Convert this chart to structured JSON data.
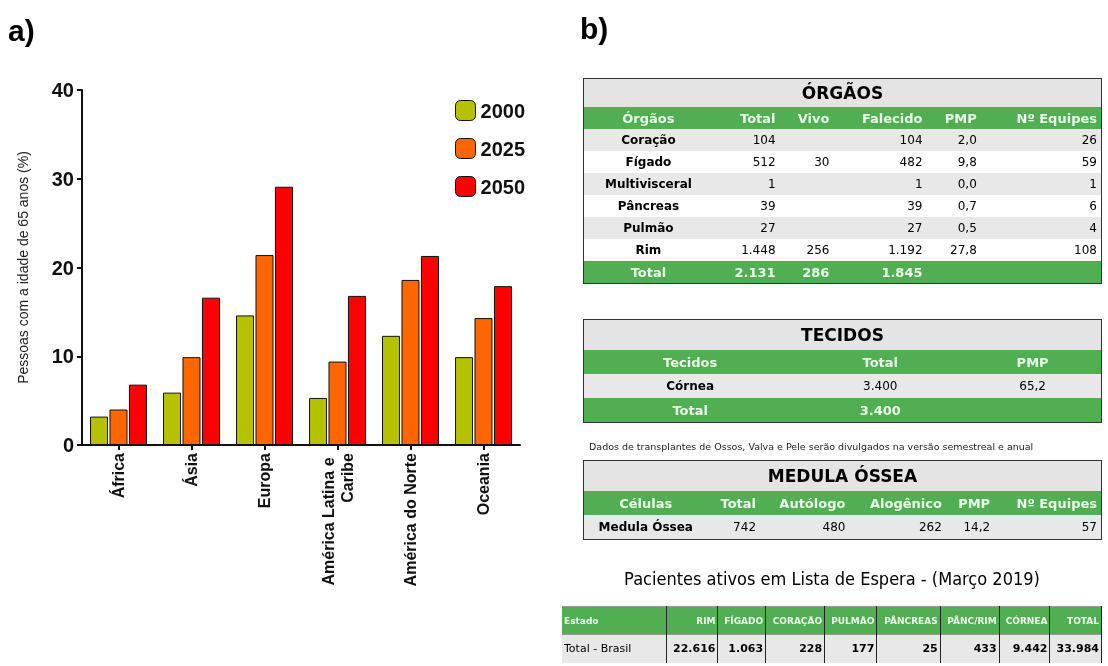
{
  "chart_data": [
    {
      "type": "bar",
      "annotations": [
        "a)"
      ],
      "ylabel": "Pessoas com a idade de 65 anos (%)",
      "categories": [
        "África",
        "Ásia",
        "Europa",
        "América Latina e Caribe",
        "América do Norte",
        "Oceania"
      ],
      "series": [
        {
          "name": "2000",
          "color": "#b5c200",
          "values": [
            3.2,
            5.9,
            14.6,
            5.3,
            12.3,
            9.9
          ]
        },
        {
          "name": "2025",
          "color": "#ff6600",
          "values": [
            4.0,
            9.9,
            21.4,
            9.4,
            18.6,
            14.3
          ]
        },
        {
          "name": "2050",
          "color": "#ff0000",
          "values": [
            6.8,
            16.6,
            29.1,
            16.8,
            21.3,
            17.9
          ]
        }
      ],
      "ylim": [
        0,
        40
      ],
      "yticks": [
        0,
        10,
        20,
        30,
        40
      ],
      "grid": false,
      "legend": "top right"
    },
    {
      "type": "other",
      "annotations": [
        "b)"
      ],
      "title": "ÓRGÃOS",
      "categories": [
        "Órgãos",
        "Total",
        "Vivo",
        "Falecido",
        "PMP",
        "Nº Equipes"
      ],
      "y_categories": [
        "Coração",
        "Fígado",
        "Multivisceral",
        "Pâncreas",
        "Pulmão",
        "Rim",
        "Total"
      ],
      "cell_labels": [
        [
          "104",
          null,
          "104",
          "2,0",
          "26"
        ],
        [
          "512",
          "30",
          "482",
          "9,8",
          "59"
        ],
        [
          "1",
          null,
          "1",
          "0,0",
          "1"
        ],
        [
          "39",
          null,
          "39",
          "0,7",
          "6"
        ],
        [
          "27",
          null,
          "27",
          "0,5",
          "4"
        ],
        [
          "1.448",
          "256",
          "1.192",
          "27,8",
          "108"
        ],
        [
          "2.131",
          "286",
          "1.845",
          null,
          null
        ]
      ]
    },
    {
      "type": "other",
      "title": "TECIDOS",
      "annotations": [
        "Dados de transplantes de Ossos, Valva e Pele serão divulgados na versão semestreal e anual"
      ],
      "categories": [
        "Tecidos",
        "Total",
        "PMP"
      ],
      "y_categories": [
        "Córnea",
        "Total"
      ],
      "cell_labels": [
        [
          "3.400",
          "65,2"
        ],
        [
          "3.400",
          null
        ]
      ]
    },
    {
      "type": "other",
      "title": "MEDULA ÓSSEA",
      "categories": [
        "Células",
        "Total",
        "Autólogo",
        "Alogênico",
        "PMP",
        "Nº Equipes"
      ],
      "y_categories": [
        "Medula Óssea"
      ],
      "cell_labels": [
        [
          "742",
          "480",
          "262",
          "14,2",
          "57"
        ]
      ]
    },
    {
      "type": "other",
      "title": "Pacientes ativos em Lista de Espera - (Março 2019)",
      "categories": [
        "Estado",
        "RIM",
        "FÍGADO",
        "CORAÇÃO",
        "PULMÃO",
        "PÂNCREAS",
        "PÂNC/RIM",
        "CÓRNEA",
        "TOTAL"
      ],
      "y_categories": [
        "Total - Brasil"
      ],
      "cell_labels": [
        [
          "22.616",
          "1.063",
          "228",
          "177",
          "25",
          "433",
          "9.442",
          "33.984"
        ]
      ]
    }
  ]
}
